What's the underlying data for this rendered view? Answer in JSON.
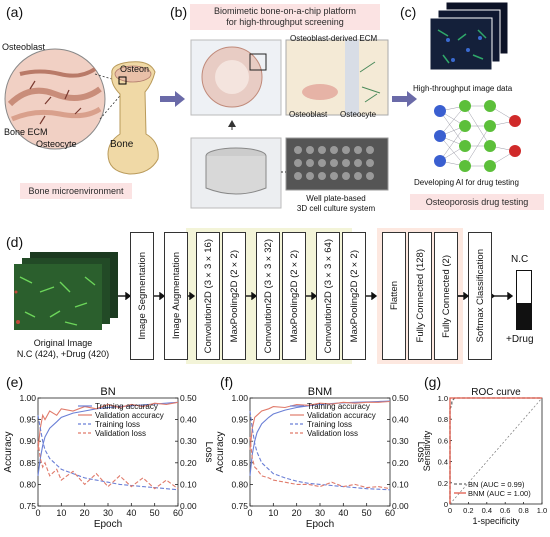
{
  "panels": {
    "a": {
      "label": "(a)",
      "osteoblast": "Osteoblast",
      "osteon": "Osteon",
      "bone_ecm": "Bone ECM",
      "osteocyte": "Osteocyte",
      "bone": "Bone",
      "caption": "Bone microenvironment"
    },
    "b": {
      "label": "(b)",
      "title_line1": "Biomimetic bone-on-a-chip platform",
      "title_line2": "for high-throughput screening",
      "ecm": "Osteoblast-derived ECM",
      "osteoblast": "Osteoblast",
      "osteocyte": "Osteocyte",
      "well_line1": "Well plate-based",
      "well_line2": "3D cell culture system"
    },
    "c": {
      "label": "(c)",
      "image_data": "High-throughput image data",
      "ai": "Developing AI for drug testing",
      "caption": "Osteoporosis drug testing"
    },
    "d": {
      "label": "(d)",
      "original_image": "Original Image",
      "counts": "N.C (424), +Drug (420)",
      "steps": [
        "Image Segmentation",
        "Image Augmentation",
        "Convolution2D (3×3×16)",
        "MaxPooling2D (2×2)",
        "Convolution2D (3×3×32)",
        "MaxPooling2D (2×2)",
        "Convolution2D (3×3×64)",
        "MaxPooling2D (2×2)",
        "Flatten",
        "Fully Connected (128)",
        "Fully Connected (2)",
        "Softmax Classification"
      ],
      "out_top": "N.C",
      "out_bottom": "+Drug"
    },
    "e": {
      "label": "(e)"
    },
    "f": {
      "label": "(f)"
    },
    "g": {
      "label": "(g)"
    }
  },
  "chart_data": [
    {
      "type": "line",
      "title": "BN",
      "xlabel": "Epoch",
      "ylabel": "Accuracy",
      "y2label": "Loss",
      "xlim": [
        0,
        60
      ],
      "ylim": [
        0.75,
        1.0
      ],
      "y2lim": [
        0.0,
        0.5
      ],
      "xticks": [
        "0",
        "10",
        "20",
        "30",
        "40",
        "50",
        "60"
      ],
      "yticks": [
        "0.75",
        "0.80",
        "0.85",
        "0.90",
        "0.95",
        "1.00"
      ],
      "y2ticks": [
        "0.00",
        "0.10",
        "0.20",
        "0.30",
        "0.40",
        "0.50"
      ],
      "legend": [
        "Training accuracy",
        "Validation accuracy",
        "Training loss",
        "Validation loss"
      ],
      "x": [
        0,
        1,
        2,
        3,
        5,
        8,
        10,
        15,
        20,
        25,
        30,
        35,
        40,
        45,
        50,
        55,
        60
      ],
      "series": [
        {
          "name": "Training accuracy",
          "axis": "left",
          "color": "#6a7fd6",
          "dash": false,
          "values": [
            0.82,
            0.86,
            0.89,
            0.91,
            0.93,
            0.945,
            0.955,
            0.965,
            0.97,
            0.975,
            0.978,
            0.98,
            0.982,
            0.984,
            0.986,
            0.988,
            0.99
          ]
        },
        {
          "name": "Validation accuracy",
          "axis": "left",
          "color": "#e07a6a",
          "dash": false,
          "values": [
            0.88,
            0.93,
            0.96,
            0.95,
            0.97,
            0.96,
            0.975,
            0.97,
            0.98,
            0.975,
            0.985,
            0.978,
            0.985,
            0.98,
            0.988,
            0.985,
            0.99
          ]
        },
        {
          "name": "Training loss",
          "axis": "right",
          "color": "#6a7fd6",
          "dash": true,
          "values": [
            0.42,
            0.36,
            0.3,
            0.26,
            0.22,
            0.19,
            0.17,
            0.15,
            0.13,
            0.12,
            0.11,
            0.1,
            0.095,
            0.09,
            0.085,
            0.08,
            0.075
          ]
        },
        {
          "name": "Validation loss",
          "axis": "right",
          "color": "#e07a6a",
          "dash": true,
          "values": [
            0.3,
            0.22,
            0.18,
            0.2,
            0.14,
            0.17,
            0.12,
            0.16,
            0.1,
            0.15,
            0.09,
            0.14,
            0.09,
            0.13,
            0.08,
            0.12,
            0.08
          ]
        }
      ]
    },
    {
      "type": "line",
      "title": "BNM",
      "xlabel": "Epoch",
      "ylabel": "Accuracy",
      "y2label": "Loss",
      "xlim": [
        0,
        60
      ],
      "ylim": [
        0.75,
        1.0
      ],
      "y2lim": [
        0.0,
        0.5
      ],
      "xticks": [
        "0",
        "10",
        "20",
        "30",
        "40",
        "50",
        "60"
      ],
      "yticks": [
        "0.75",
        "0.80",
        "0.85",
        "0.90",
        "0.95",
        "1.00"
      ],
      "y2ticks": [
        "0.00",
        "0.10",
        "0.20",
        "0.30",
        "0.40",
        "0.50"
      ],
      "legend": [
        "Training accuracy",
        "Validation accuracy",
        "Training loss",
        "Validation loss"
      ],
      "x": [
        0,
        1,
        2,
        3,
        5,
        8,
        10,
        15,
        20,
        25,
        30,
        35,
        40,
        45,
        50,
        55,
        60
      ],
      "series": [
        {
          "name": "Training accuracy",
          "axis": "left",
          "color": "#6a7fd6",
          "dash": false,
          "values": [
            0.82,
            0.87,
            0.9,
            0.92,
            0.94,
            0.955,
            0.963,
            0.972,
            0.978,
            0.982,
            0.985,
            0.987,
            0.989,
            0.99,
            0.991,
            0.992,
            0.993
          ]
        },
        {
          "name": "Validation accuracy",
          "axis": "left",
          "color": "#e07a6a",
          "dash": false,
          "values": [
            0.88,
            0.93,
            0.955,
            0.96,
            0.97,
            0.975,
            0.98,
            0.978,
            0.985,
            0.983,
            0.988,
            0.986,
            0.99,
            0.988,
            0.99,
            0.99,
            0.992
          ]
        },
        {
          "name": "Training loss",
          "axis": "right",
          "color": "#6a7fd6",
          "dash": true,
          "values": [
            0.44,
            0.36,
            0.29,
            0.25,
            0.2,
            0.17,
            0.15,
            0.13,
            0.115,
            0.105,
            0.1,
            0.095,
            0.09,
            0.085,
            0.08,
            0.078,
            0.075
          ]
        },
        {
          "name": "Validation loss",
          "axis": "right",
          "color": "#e07a6a",
          "dash": true,
          "values": [
            0.32,
            0.22,
            0.18,
            0.17,
            0.14,
            0.13,
            0.12,
            0.11,
            0.1,
            0.1,
            0.09,
            0.11,
            0.09,
            0.1,
            0.085,
            0.09,
            0.08
          ]
        }
      ]
    },
    {
      "type": "line",
      "title": "ROC curve",
      "xlabel": "1-specificity",
      "ylabel": "Sensitivity",
      "xlim": [
        0,
        1.0
      ],
      "ylim": [
        0,
        1.0
      ],
      "xticks": [
        "0",
        "0.2",
        "0.4",
        "0.6",
        "0.8",
        "1.0"
      ],
      "yticks": [
        "0",
        "0.2",
        "0.4",
        "0.6",
        "0.8",
        "1.0"
      ],
      "legend": [
        "BN (AUC = 0.99)",
        "BNM (AUC = 1.00)"
      ],
      "series": [
        {
          "name": "BN (AUC = 0.99)",
          "color": "#6a6a6a",
          "dash": true,
          "x": [
            0,
            0,
            0.02,
            0.02,
            0.05,
            1.0
          ],
          "y": [
            0,
            0.9,
            0.93,
            0.97,
            1.0,
            1.0
          ]
        },
        {
          "name": "BNM (AUC = 1.00)",
          "color": "#e05a4a",
          "dash": false,
          "x": [
            0,
            0,
            1.0
          ],
          "y": [
            0,
            1.0,
            1.0
          ]
        }
      ]
    }
  ]
}
